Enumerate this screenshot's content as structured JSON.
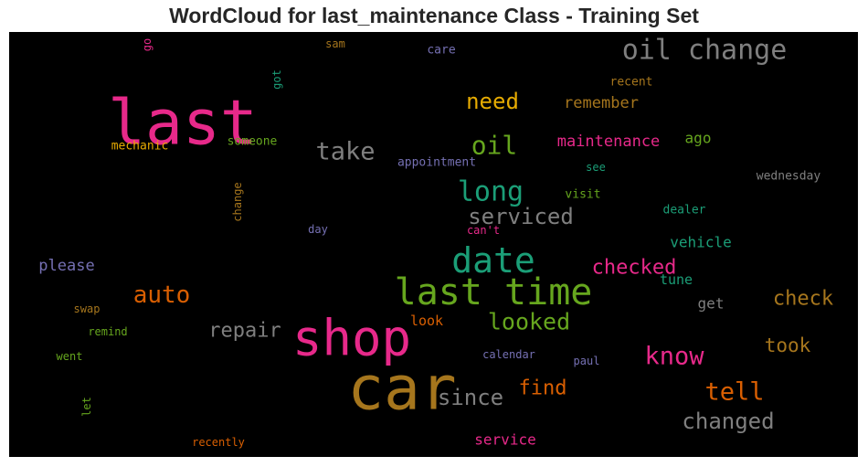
{
  "chart_data": {
    "type": "wordcloud",
    "title": "WordCloud for last_maintenance Class - Training Set",
    "background": "#000000",
    "palette": [
      "#e7298a",
      "#a6761d",
      "#7f7f7f",
      "#1b9e77",
      "#66a61e",
      "#d95f02",
      "#e6ab02",
      "#7570b3"
    ],
    "words": [
      {
        "text": "last",
        "color": "#e7298a"
      },
      {
        "text": "car",
        "color": "#a6761d"
      },
      {
        "text": "shop",
        "color": "#e7298a"
      },
      {
        "text": "last time",
        "color": "#66a61e"
      },
      {
        "text": "date",
        "color": "#1b9e77"
      },
      {
        "text": "oil change",
        "color": "#7f7f7f"
      },
      {
        "text": "take",
        "color": "#7f7f7f"
      },
      {
        "text": "oil",
        "color": "#66a61e"
      },
      {
        "text": "long",
        "color": "#1b9e77"
      },
      {
        "text": "serviced",
        "color": "#7f7f7f"
      },
      {
        "text": "auto",
        "color": "#d95f02"
      },
      {
        "text": "looked",
        "color": "#66a61e"
      },
      {
        "text": "know",
        "color": "#e7298a"
      },
      {
        "text": "since",
        "color": "#7f7f7f"
      },
      {
        "text": "tell",
        "color": "#d95f02"
      },
      {
        "text": "changed",
        "color": "#7f7f7f"
      },
      {
        "text": "need",
        "color": "#e6ab02"
      },
      {
        "text": "checked",
        "color": "#e7298a"
      },
      {
        "text": "check",
        "color": "#a6761d"
      },
      {
        "text": "repair",
        "color": "#7f7f7f"
      },
      {
        "text": "took",
        "color": "#a6761d"
      },
      {
        "text": "find",
        "color": "#d95f02"
      },
      {
        "text": "remember",
        "color": "#a6761d"
      },
      {
        "text": "maintenance",
        "color": "#e7298a"
      },
      {
        "text": "vehicle",
        "color": "#1b9e77"
      },
      {
        "text": "please",
        "color": "#7570b3"
      },
      {
        "text": "service",
        "color": "#e7298a"
      },
      {
        "text": "ago",
        "color": "#66a61e"
      },
      {
        "text": "tune",
        "color": "#1b9e77"
      },
      {
        "text": "get",
        "color": "#7f7f7f"
      },
      {
        "text": "look",
        "color": "#d95f02"
      },
      {
        "text": "mechanic",
        "color": "#e6ab02"
      },
      {
        "text": "someone",
        "color": "#66a61e"
      },
      {
        "text": "appointment",
        "color": "#7570b3"
      },
      {
        "text": "wednesday",
        "color": "#7f7f7f"
      },
      {
        "text": "recent",
        "color": "#a6761d"
      },
      {
        "text": "visit",
        "color": "#66a61e"
      },
      {
        "text": "dealer",
        "color": "#1b9e77"
      },
      {
        "text": "see",
        "color": "#1b9e77"
      },
      {
        "text": "care",
        "color": "#7570b3"
      },
      {
        "text": "sam",
        "color": "#a6761d"
      },
      {
        "text": "got",
        "color": "#1b9e77"
      },
      {
        "text": "go",
        "color": "#e7298a"
      },
      {
        "text": "change",
        "color": "#a6761d"
      },
      {
        "text": "day",
        "color": "#7570b3"
      },
      {
        "text": "can't",
        "color": "#e7298a"
      },
      {
        "text": "swap",
        "color": "#a6761d"
      },
      {
        "text": "remind",
        "color": "#66a61e"
      },
      {
        "text": "went",
        "color": "#66a61e"
      },
      {
        "text": "let",
        "color": "#66a61e"
      },
      {
        "text": "recently",
        "color": "#d95f02"
      },
      {
        "text": "calendar",
        "color": "#7570b3"
      },
      {
        "text": "paul",
        "color": "#7570b3"
      }
    ]
  }
}
